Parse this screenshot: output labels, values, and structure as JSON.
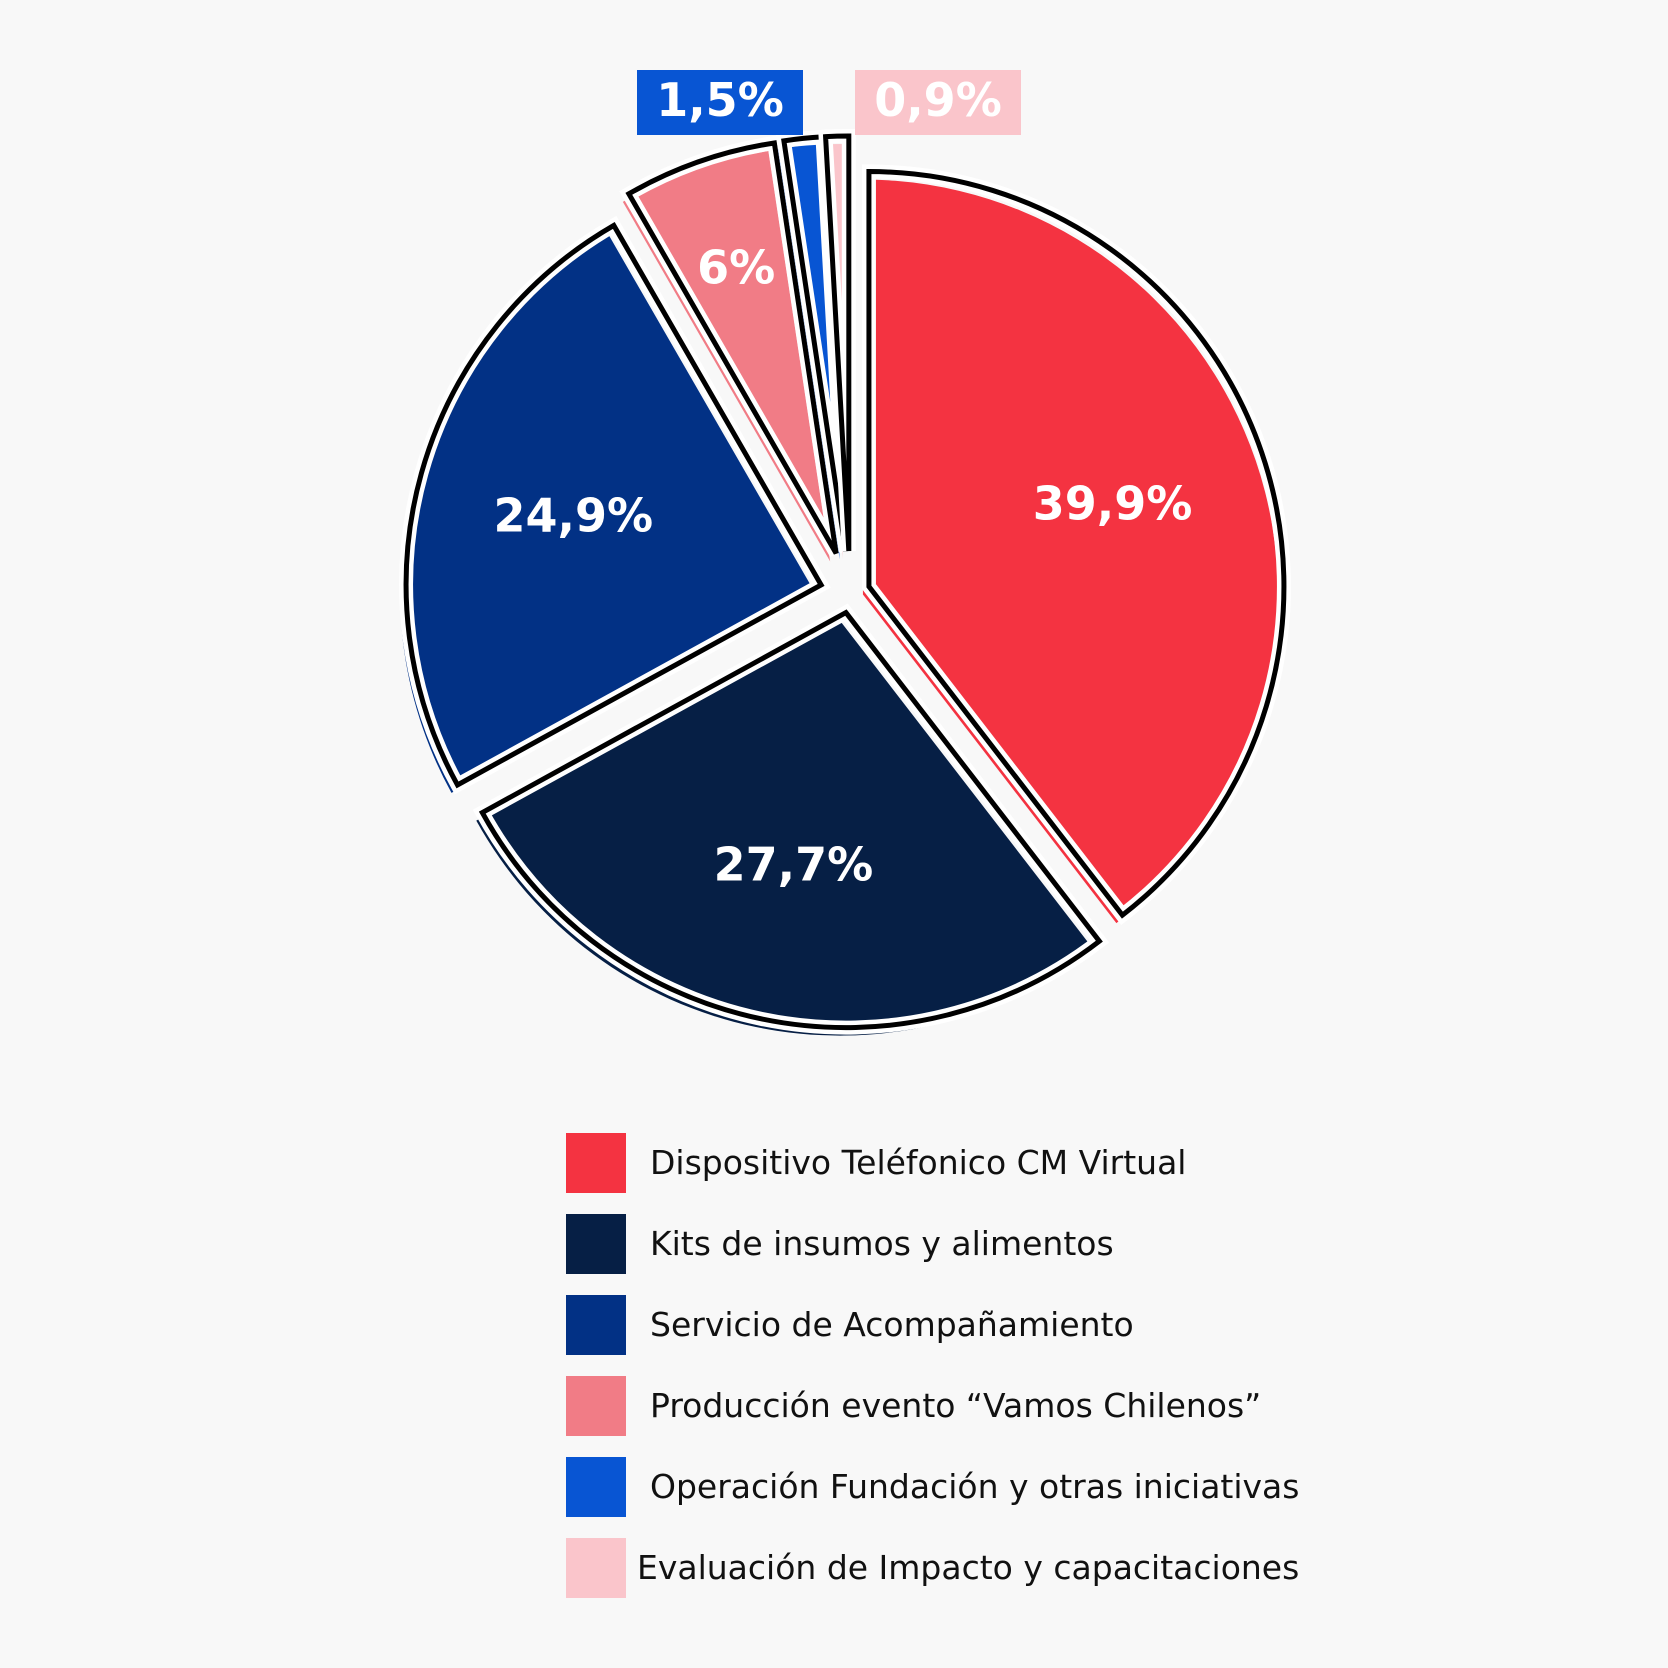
{
  "chart_data": {
    "type": "pie",
    "slices": [
      {
        "name": "Dispositivo Teléfonico CM Virtual",
        "value": 39.9,
        "label": "39,9%",
        "color": "#f43341"
      },
      {
        "name": "Kits de insumos y alimentos",
        "value": 27.7,
        "label": "27,7%",
        "color": "#061f45"
      },
      {
        "name": "Servicio de Acompañamiento",
        "value": 24.9,
        "label": "24,9%",
        "color": "#023185"
      },
      {
        "name": "Producción evento “Vamos Chilenos”",
        "value": 6.0,
        "label": "6%",
        "color": "#f17c86"
      },
      {
        "name": "Operación Fundación y otras iniciativas",
        "value": 1.5,
        "label": "1,5%",
        "color": "#0855d3"
      },
      {
        "name": "Evaluación de Impacto y capacitaciones",
        "value": 0.9,
        "label": "0,9%",
        "color": "#fac5cb"
      }
    ],
    "legend_position": "bottom",
    "exploded": true
  }
}
